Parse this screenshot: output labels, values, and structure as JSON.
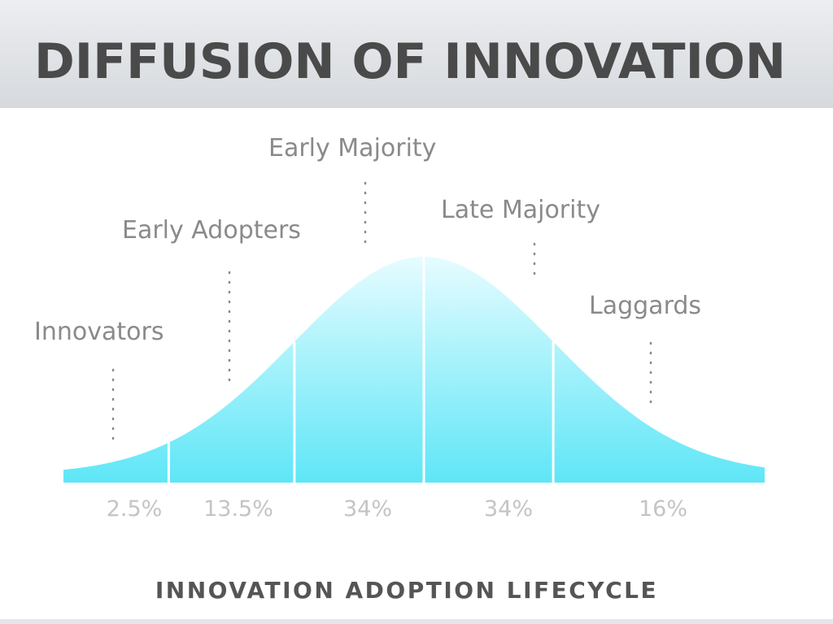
{
  "chart_data": {
    "type": "bell",
    "title": "DIFFUSION OF INNOVATION",
    "subtitle": "INNOVATION ADOPTION LIFECYCLE",
    "categories": [
      "Innovators",
      "Early Adopters",
      "Early Majority",
      "Late Majority",
      "Laggards"
    ],
    "values": [
      2.5,
      13.5,
      34,
      34,
      16
    ],
    "value_labels": [
      "2.5%",
      "13.5%",
      "34%",
      "34%",
      "16%"
    ],
    "color": "#5ee6f7"
  }
}
